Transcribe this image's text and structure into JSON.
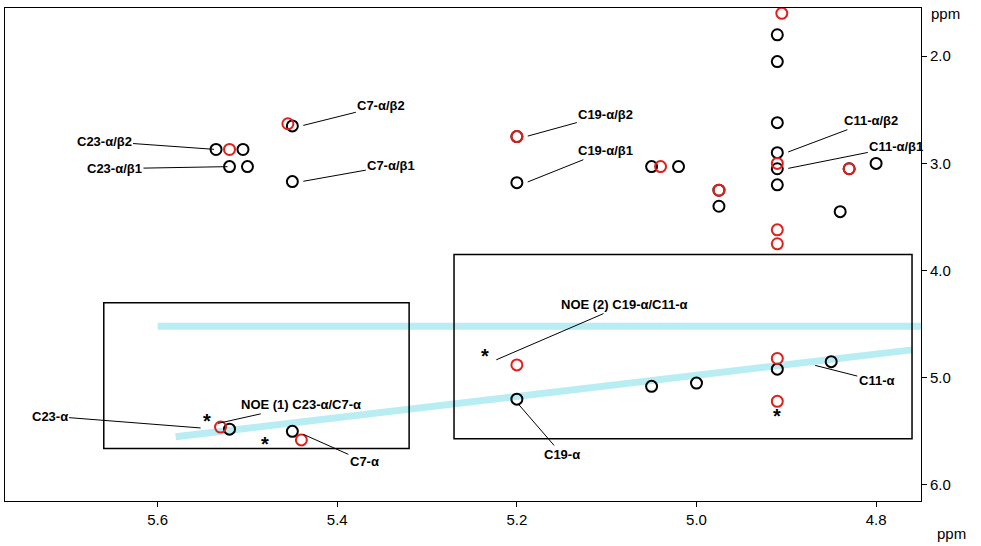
{
  "chart_data": {
    "type": "scatter",
    "x_label": "ppm",
    "y_label": "ppm",
    "xlim": [
      5.77,
      4.75
    ],
    "ylim": [
      6.15,
      1.55
    ],
    "xticks": [
      5.6,
      5.4,
      5.2,
      {
        "value": 5,
        "label": "5.0"
      },
      4.8
    ],
    "yticks": [
      {
        "value": 2,
        "label": "2.0"
      },
      {
        "value": 3,
        "label": "3.0"
      },
      {
        "value": 4,
        "label": "4.0"
      },
      {
        "value": 5,
        "label": "5.0"
      },
      {
        "value": 6,
        "label": "6.0"
      }
    ],
    "grid": false,
    "tick_labels": true,
    "series": [
      {
        "type": "line",
        "color": "#b8eef3",
        "x": [
          5.58,
          4.76
        ],
        "values": [
          5.55,
          4.74
        ]
      },
      {
        "type": "line",
        "color": "#b8eef3",
        "x": [
          5.6,
          4.75
        ],
        "values": [
          4.52,
          4.52
        ]
      },
      {
        "type": "scatter",
        "color": "#000000",
        "marker": "circle-open",
        "x": [
          5.535,
          5.505,
          5.52,
          5.5,
          5.45,
          5.45,
          5.2,
          5.2,
          5.05,
          5.02,
          4.91,
          4.91,
          4.91,
          4.91,
          4.91,
          4.91,
          4.975,
          4.975,
          4.83,
          4.84,
          4.8,
          5.52,
          5.45,
          5.2,
          5.05,
          5.0,
          4.91,
          4.85
        ],
        "values": [
          2.87,
          2.87,
          3.03,
          3.03,
          2.65,
          3.17,
          2.75,
          3.18,
          3.03,
          3.03,
          1.8,
          2.05,
          2.62,
          2.9,
          3.05,
          3.2,
          3.25,
          3.4,
          3.05,
          3.45,
          3.0,
          5.48,
          5.5,
          5.2,
          5.08,
          5.05,
          4.92,
          4.85
        ]
      },
      {
        "type": "scatter",
        "color": "#e0201b",
        "marker": "circle-open",
        "x": [
          5.52,
          5.455,
          5.2,
          5.04,
          4.975,
          4.91,
          4.91,
          4.91,
          4.905,
          4.83,
          5.53,
          5.44,
          5.2,
          4.91,
          4.91
        ],
        "values": [
          2.87,
          2.63,
          2.75,
          3.03,
          3.25,
          3.0,
          3.62,
          3.75,
          1.6,
          3.05,
          5.46,
          5.58,
          4.88,
          4.82,
          5.22
        ]
      }
    ],
    "annotations": [
      {
        "text": "C23-α/β2",
        "x": 5.535,
        "y": 2.87
      },
      {
        "text": "C23-α/β1",
        "x": 5.52,
        "y": 3.03
      },
      {
        "text": "C7-α/β2",
        "x": 5.44,
        "y": 2.65
      },
      {
        "text": "C7-α/β1",
        "x": 5.44,
        "y": 3.17
      },
      {
        "text": "C19-α/β2",
        "x": 5.19,
        "y": 2.75
      },
      {
        "text": "C19-α/β1",
        "x": 5.19,
        "y": 3.18
      },
      {
        "text": "C11-α/β2",
        "x": 4.9,
        "y": 2.9
      },
      {
        "text": "C11-α/β1",
        "x": 4.9,
        "y": 3.05
      },
      {
        "text": "NOE (1) C23-α/C7-α",
        "x": 5.535,
        "y": 5.43
      },
      {
        "text": "NOE (2) C19-α/C11-α",
        "x": 5.225,
        "y": 4.84
      },
      {
        "text": "C23-α",
        "x": 5.55,
        "y": 5.47
      },
      {
        "text": "C7-α",
        "x": 5.44,
        "y": 5.52
      },
      {
        "text": "C19-α",
        "x": 5.2,
        "y": 5.23
      },
      {
        "text": "C11-α",
        "x": 4.87,
        "y": 4.88
      },
      {
        "text": "*",
        "x": 5.545,
        "y": 5.4
      },
      {
        "text": "*",
        "x": 5.48,
        "y": 5.62
      },
      {
        "text": "*",
        "x": 5.235,
        "y": 4.8
      },
      {
        "text": "*",
        "x": 4.91,
        "y": 5.36
      }
    ]
  }
}
